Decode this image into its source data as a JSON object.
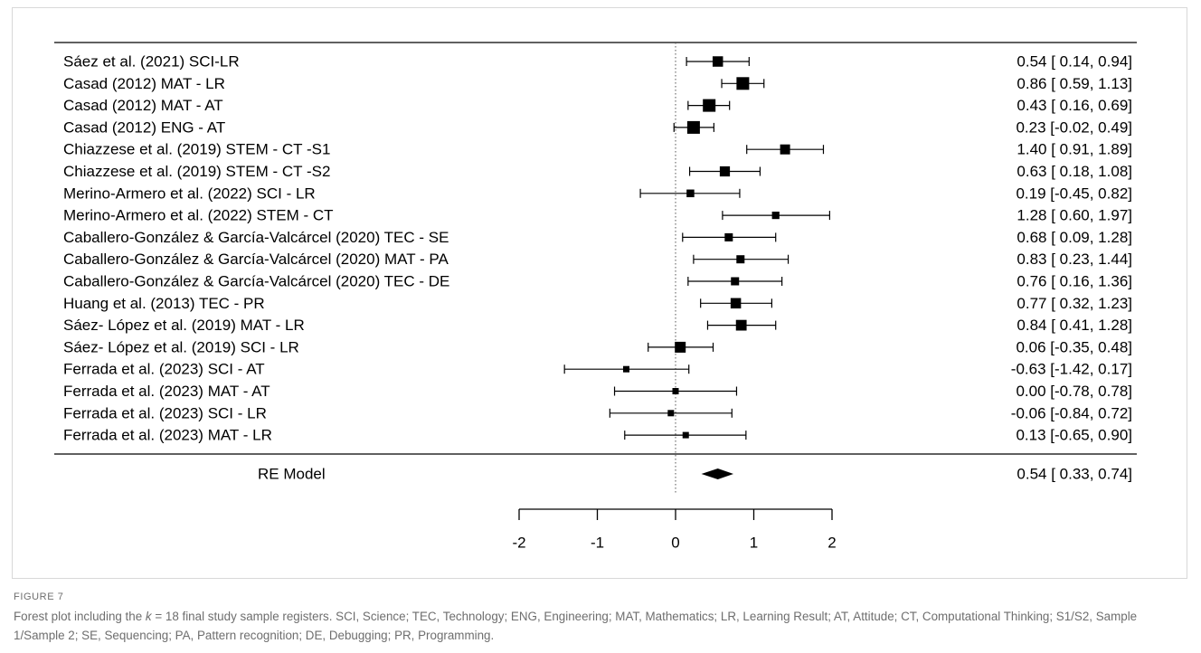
{
  "figure": {
    "label": "FIGURE 7",
    "caption_prefix": "Forest plot including the ",
    "caption_k": "k",
    "caption_rest": " = 18 final study sample registers. SCI, Science; TEC, Technology; ENG, Engineering; MAT, Mathematics; LR, Learning Result; AT, Attitude; CT, Computational Thinking; S1/S2, Sample 1/Sample 2; SE, Sequencing; PA, Pattern recognition; DE, Debugging; PR, Programming."
  },
  "chart_data": {
    "type": "forest",
    "xlim": [
      -2,
      2
    ],
    "xticks": [
      -2,
      -1,
      0,
      1,
      2
    ],
    "reference_line": 0,
    "studies": [
      {
        "label": "Sáez et al. (2021) SCI-LR",
        "est": 0.54,
        "lo": 0.14,
        "hi": 0.94,
        "text": "0.54 [ 0.14, 0.94]",
        "weight": 0.75
      },
      {
        "label": "Casad (2012) MAT - LR",
        "est": 0.86,
        "lo": 0.59,
        "hi": 1.13,
        "text": "0.86 [ 0.59, 1.13]",
        "weight": 1.0
      },
      {
        "label": "Casad (2012) MAT - AT",
        "est": 0.43,
        "lo": 0.16,
        "hi": 0.69,
        "text": "0.43 [ 0.16, 0.69]",
        "weight": 1.0
      },
      {
        "label": "Casad (2012) ENG - AT",
        "est": 0.23,
        "lo": -0.02,
        "hi": 0.49,
        "text": "0.23 [-0.02, 0.49]",
        "weight": 1.0
      },
      {
        "label": "Chiazzese et al. (2019) STEM - CT -S1",
        "est": 1.4,
        "lo": 0.91,
        "hi": 1.89,
        "text": "1.40 [ 0.91, 1.89]",
        "weight": 0.7
      },
      {
        "label": "Chiazzese et al. (2019) STEM - CT -S2",
        "est": 0.63,
        "lo": 0.18,
        "hi": 1.08,
        "text": "0.63 [ 0.18, 1.08]",
        "weight": 0.72
      },
      {
        "label": "Merino-Armero et al. (2022) SCI - LR",
        "est": 0.19,
        "lo": -0.45,
        "hi": 0.82,
        "text": "0.19 [-0.45, 0.82]",
        "weight": 0.45
      },
      {
        "label": "Merino-Armero et al. (2022) STEM - CT",
        "est": 1.28,
        "lo": 0.6,
        "hi": 1.97,
        "text": "1.28 [ 0.60, 1.97]",
        "weight": 0.42
      },
      {
        "label": "Caballero-González & García-Valcárcel (2020) TEC - SE",
        "est": 0.68,
        "lo": 0.09,
        "hi": 1.28,
        "text": "0.68 [ 0.09, 1.28]",
        "weight": 0.5
      },
      {
        "label": "Caballero-González & García-Valcárcel (2020) MAT - PA",
        "est": 0.83,
        "lo": 0.23,
        "hi": 1.44,
        "text": "0.83 [ 0.23, 1.44]",
        "weight": 0.5
      },
      {
        "label": "Caballero-González & García-Valcárcel (2020) TEC - DE",
        "est": 0.76,
        "lo": 0.16,
        "hi": 1.36,
        "text": "0.76 [ 0.16, 1.36]",
        "weight": 0.5
      },
      {
        "label": "Huang et al. (2013) TEC - PR",
        "est": 0.77,
        "lo": 0.32,
        "hi": 1.23,
        "text": "0.77 [ 0.32, 1.23]",
        "weight": 0.75
      },
      {
        "label": "Sáez- López et al. (2019) MAT - LR",
        "est": 0.84,
        "lo": 0.41,
        "hi": 1.28,
        "text": "0.84 [ 0.41, 1.28]",
        "weight": 0.78
      },
      {
        "label": "Sáez- López et al. (2019) SCI - LR",
        "est": 0.06,
        "lo": -0.35,
        "hi": 0.48,
        "text": "0.06 [-0.35, 0.48]",
        "weight": 0.8
      },
      {
        "label": "Ferrada et al. (2023) SCI - AT",
        "est": -0.63,
        "lo": -1.42,
        "hi": 0.17,
        "text": "-0.63 [-1.42, 0.17]",
        "weight": 0.3
      },
      {
        "label": "Ferrada et al. (2023) MAT - AT",
        "est": 0.0,
        "lo": -0.78,
        "hi": 0.78,
        "text": "0.00 [-0.78, 0.78]",
        "weight": 0.3
      },
      {
        "label": "Ferrada et al. (2023) SCI - LR",
        "est": -0.06,
        "lo": -0.84,
        "hi": 0.72,
        "text": "-0.06 [-0.84, 0.72]",
        "weight": 0.3
      },
      {
        "label": "Ferrada et al. (2023) MAT - LR",
        "est": 0.13,
        "lo": -0.65,
        "hi": 0.9,
        "text": "0.13 [-0.65, 0.90]",
        "weight": 0.3
      }
    ],
    "summary": {
      "label": "RE Model",
      "est": 0.54,
      "lo": 0.33,
      "hi": 0.74,
      "text": "0.54 [ 0.33, 0.74]"
    }
  }
}
